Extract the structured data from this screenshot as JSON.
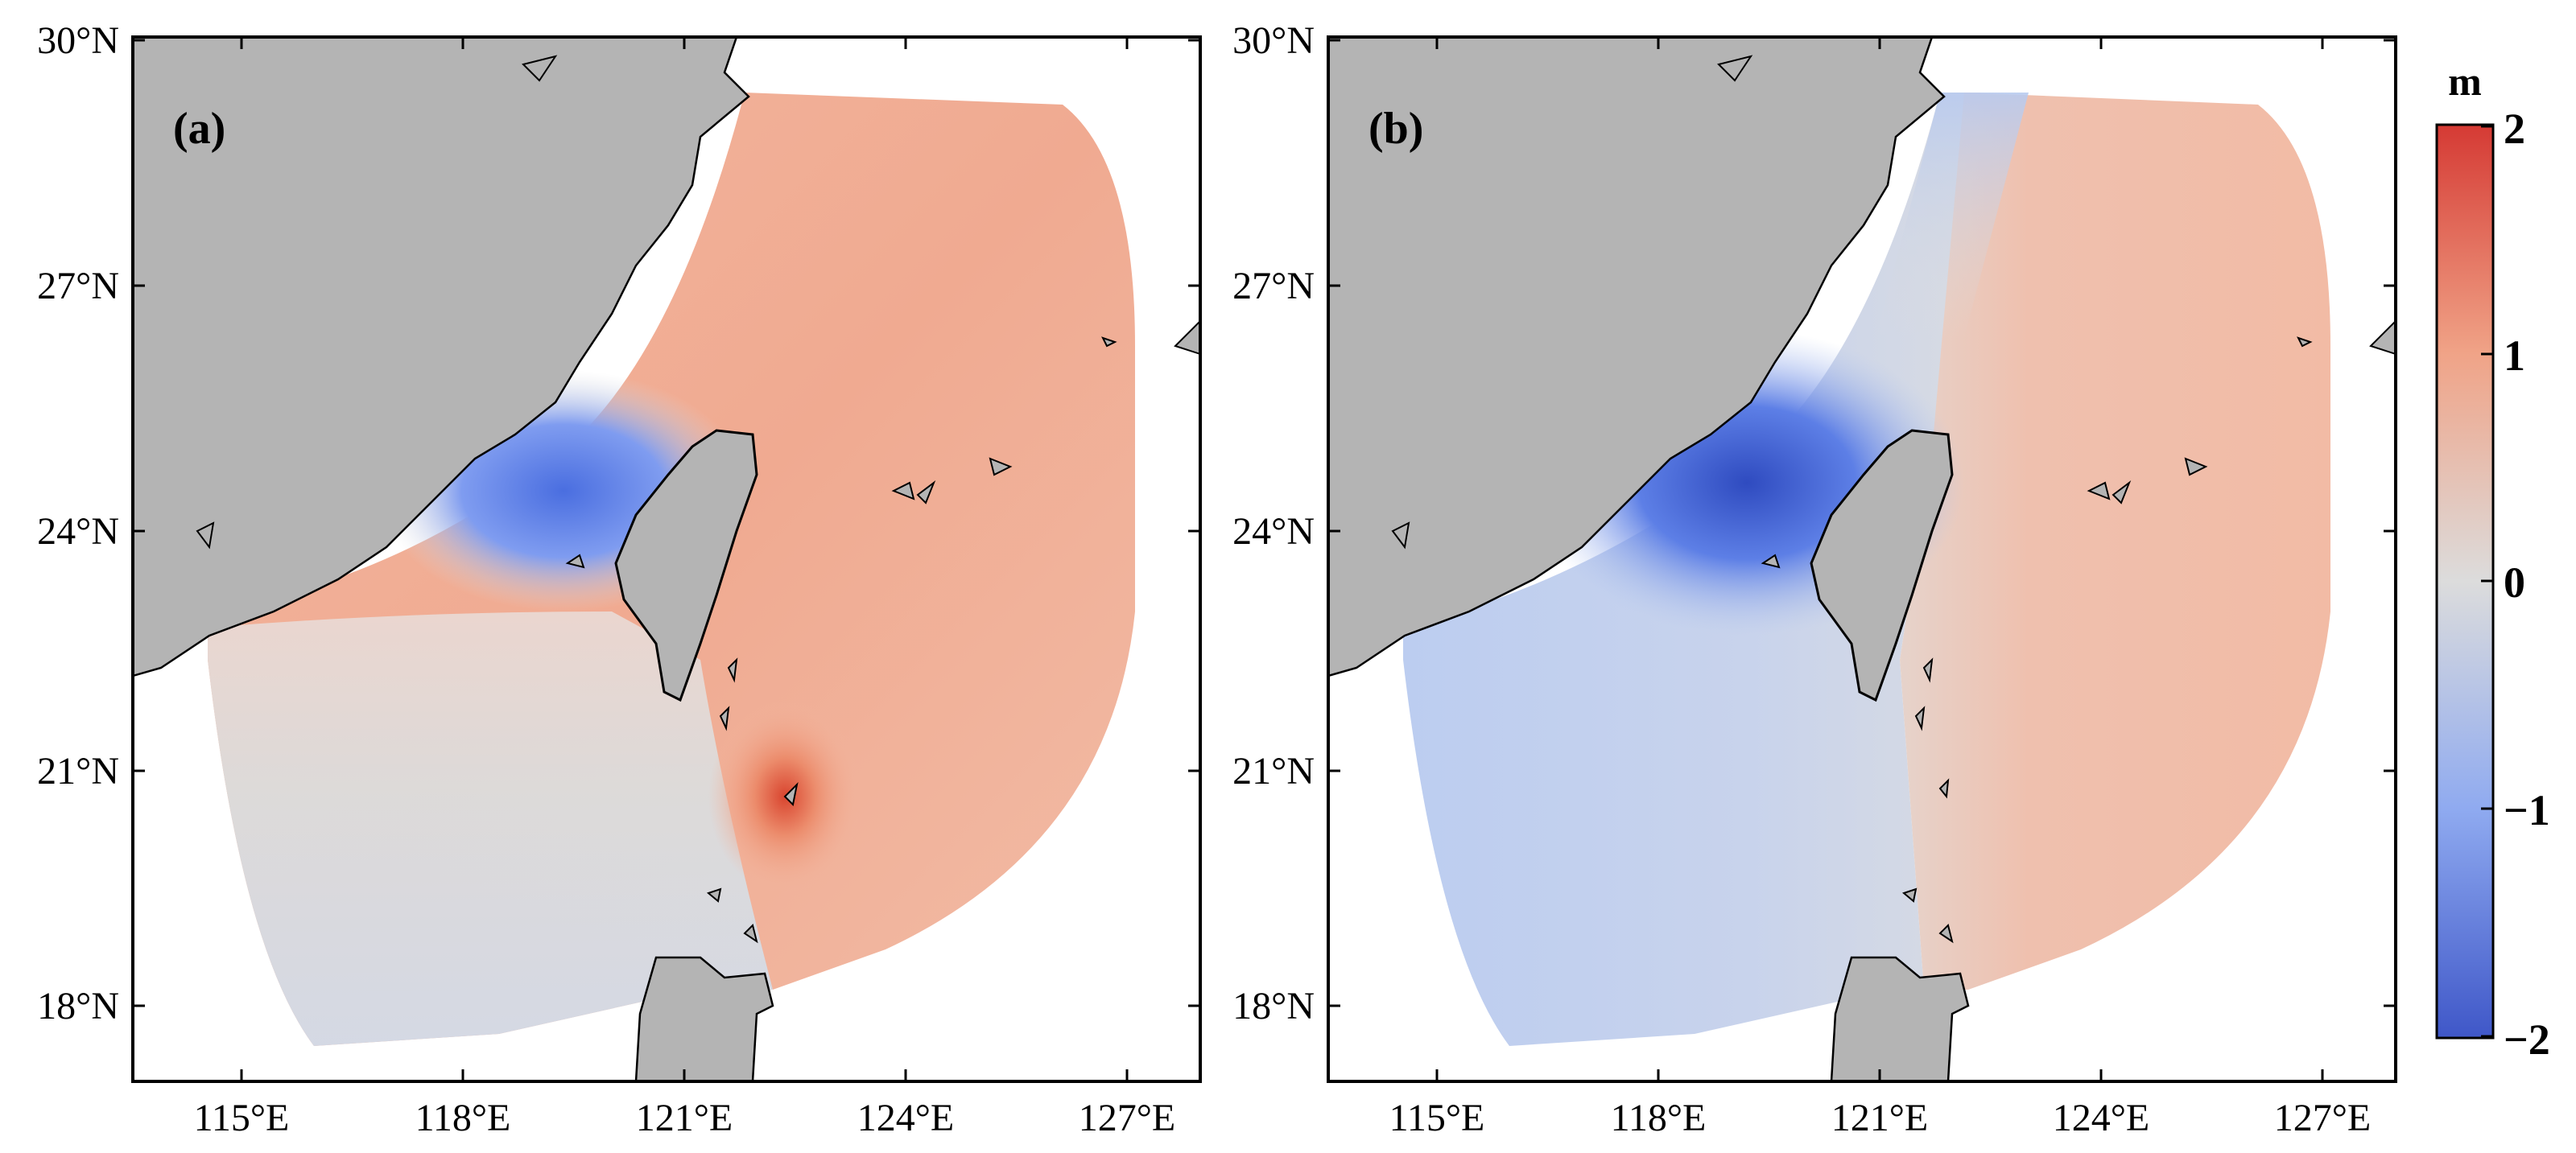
{
  "figure": {
    "panels": [
      {
        "label": "(a)",
        "lat_ticks": [
          "30°N",
          "27°N",
          "24°N",
          "21°N",
          "18°N"
        ],
        "lon_ticks": [
          "115°E",
          "118°E",
          "121°E",
          "124°E",
          "127°E"
        ]
      },
      {
        "label": "(b)",
        "lat_ticks": [
          "30°N",
          "27°N",
          "24°N",
          "21°N",
          "18°N"
        ],
        "lon_ticks": [
          "115°E",
          "118°E",
          "121°E",
          "124°E",
          "127°E"
        ]
      }
    ],
    "colorbar": {
      "unit": "m",
      "tick_labels": [
        "2",
        "1",
        "0",
        "−1",
        "−2"
      ],
      "range": [
        -2,
        2
      ],
      "colors": {
        "min": "#3f57c8",
        "mid": "#dcdcdc",
        "max": "#d53a34"
      }
    },
    "colors": {
      "land": "#b4b4b4",
      "coast": "#000000",
      "field_positive": "#f0a48a",
      "field_negative": "#5a7ee8",
      "field_neutral": "#dcdcdc"
    },
    "map_extent": {
      "lon": [
        113.5,
        127.8
      ],
      "lat": [
        17.0,
        30.0
      ]
    }
  }
}
